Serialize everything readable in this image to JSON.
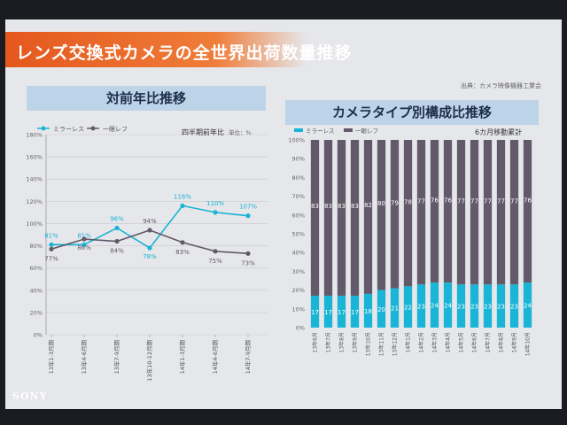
{
  "slide": {
    "title": "レンズ交換式カメラの全世界出荷数量推移",
    "source": "出典：カメラ映像機器工業会",
    "brand": "SONY"
  },
  "colors": {
    "mirrorless": "#19b4d6",
    "slr": "#625a6a",
    "title_bar": "#e4571d",
    "banner": "#bdd3e8"
  },
  "chart_data": [
    {
      "type": "line",
      "title": "対前年比推移",
      "subtitle": "四半期前年比",
      "unit": "単位：%",
      "categories": [
        "13年1-3月期",
        "13年4-6月期",
        "13年7-9月期",
        "13年10-12月期",
        "14年1-3月期",
        "14年4-6月期",
        "14年7-9月期"
      ],
      "series": [
        {
          "name": "ミラーレス",
          "color": "#19b4d6",
          "values": [
            81,
            81,
            96,
            78,
            116,
            110,
            107
          ]
        },
        {
          "name": "一眼レフ",
          "color": "#625a6a",
          "values": [
            77,
            86,
            84,
            94,
            83,
            75,
            73
          ]
        }
      ],
      "ylim": [
        0,
        180
      ],
      "yticks": [
        "0%",
        "20%",
        "40%",
        "60%",
        "80%",
        "100%",
        "120%",
        "140%",
        "160%",
        "180%"
      ],
      "grid": true,
      "legend": "top-left"
    },
    {
      "type": "bar",
      "stacked": true,
      "title": "カメラタイプ別構成比推移",
      "subtitle": "6カ月移動累計",
      "categories": [
        "13年6月",
        "13年7月",
        "13年8月",
        "13年9月",
        "13年10月",
        "13年11月",
        "13年12月",
        "14年1月",
        "14年2月",
        "14年3月",
        "14年4月",
        "14年5月",
        "14年6月",
        "14年7月",
        "14年8月",
        "14年9月",
        "14年10月"
      ],
      "series": [
        {
          "name": "ミラーレス",
          "color": "#19b4d6",
          "values": [
            17,
            17,
            17,
            17,
            18,
            20,
            21,
            22,
            23,
            24,
            24,
            23,
            23,
            23,
            23,
            23,
            24
          ]
        },
        {
          "name": "一眼レフ",
          "color": "#625a6a",
          "values": [
            83,
            83,
            83,
            83,
            82,
            80,
            79,
            78,
            77,
            76,
            76,
            77,
            77,
            77,
            77,
            77,
            76
          ]
        }
      ],
      "ylim": [
        0,
        100
      ],
      "yticks": [
        "0%",
        "10%",
        "20%",
        "30%",
        "40%",
        "50%",
        "60%",
        "70%",
        "80%",
        "90%",
        "100%"
      ],
      "legend": "top-left"
    }
  ]
}
